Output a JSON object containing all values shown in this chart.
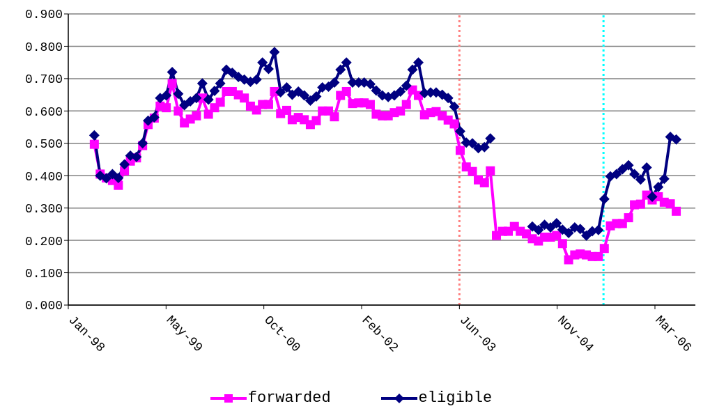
{
  "chart_data": {
    "type": "line",
    "x": [
      "1998-06",
      "1998-07",
      "1998-08",
      "1998-09",
      "1998-10",
      "1998-11",
      "1998-12",
      "1999-01",
      "1999-02",
      "1999-03",
      "1999-04",
      "1999-05",
      "1999-06",
      "1999-07",
      "1999-08",
      "1999-09",
      "1999-10",
      "1999-11",
      "1999-12",
      "2000-01",
      "2000-02",
      "2000-03",
      "2000-04",
      "2000-05",
      "2000-06",
      "2000-07",
      "2000-08",
      "2000-09",
      "2000-10",
      "2000-11",
      "2000-12",
      "2001-01",
      "2001-02",
      "2001-03",
      "2001-04",
      "2001-05",
      "2001-06",
      "2001-07",
      "2001-08",
      "2001-09",
      "2001-10",
      "2001-11",
      "2001-12",
      "2002-01",
      "2002-02",
      "2002-03",
      "2002-04",
      "2002-05",
      "2002-06",
      "2002-07",
      "2002-08",
      "2002-09",
      "2002-10",
      "2002-11",
      "2002-12",
      "2003-01",
      "2003-02",
      "2003-03",
      "2003-04",
      "2003-05",
      "2003-06",
      "2003-07",
      "2003-08",
      "2003-09",
      "2003-10",
      "2003-11",
      "2003-12",
      "2004-01",
      "2004-02",
      "2004-03",
      "2004-04",
      "2004-05",
      "2004-06",
      "2004-07",
      "2004-08",
      "2004-09",
      "2004-10",
      "2004-11",
      "2004-12",
      "2005-01",
      "2005-02",
      "2005-03",
      "2005-04",
      "2005-05",
      "2005-06",
      "2005-07",
      "2005-08",
      "2005-09",
      "2005-10",
      "2005-11",
      "2005-12",
      "2006-01",
      "2006-02",
      "2006-03",
      "2006-04",
      "2006-05",
      "2006-06",
      "2006-07"
    ],
    "series": [
      {
        "name": "forwarded",
        "color": "#ff00ff",
        "marker": "square",
        "values": [
          0.497,
          0.405,
          0.393,
          0.385,
          0.37,
          0.415,
          0.445,
          0.455,
          0.493,
          0.558,
          0.578,
          0.615,
          0.61,
          0.685,
          0.6,
          0.563,
          0.575,
          0.585,
          0.64,
          0.59,
          0.61,
          0.627,
          0.66,
          0.66,
          0.65,
          0.64,
          0.615,
          0.603,
          0.62,
          0.62,
          0.66,
          0.592,
          0.602,
          0.573,
          0.58,
          0.573,
          0.558,
          0.57,
          0.6,
          0.6,
          0.582,
          0.648,
          0.66,
          0.623,
          0.625,
          0.625,
          0.62,
          0.59,
          0.585,
          0.585,
          0.595,
          0.6,
          0.62,
          0.665,
          0.648,
          0.588,
          0.595,
          0.598,
          0.585,
          0.572,
          0.56,
          0.478,
          0.427,
          0.413,
          0.387,
          0.378,
          0.415,
          0.215,
          0.228,
          0.228,
          0.243,
          0.228,
          0.22,
          0.205,
          0.198,
          0.21,
          0.21,
          0.215,
          0.19,
          0.14,
          0.155,
          0.158,
          0.155,
          0.15,
          0.15,
          0.175,
          0.245,
          0.252,
          0.252,
          0.27,
          0.31,
          0.312,
          0.34,
          0.325,
          0.335,
          0.318,
          0.313,
          0.29
        ]
      },
      {
        "name": "eligible",
        "color": "#000080",
        "marker": "diamond",
        "values": [
          0.525,
          0.4,
          0.392,
          0.405,
          0.393,
          0.435,
          0.462,
          0.458,
          0.5,
          0.57,
          0.58,
          0.64,
          0.648,
          0.72,
          0.653,
          0.618,
          0.63,
          0.64,
          0.685,
          0.635,
          0.662,
          0.685,
          0.728,
          0.718,
          0.705,
          0.697,
          0.69,
          0.697,
          0.75,
          0.73,
          0.782,
          0.658,
          0.673,
          0.65,
          0.66,
          0.648,
          0.632,
          0.645,
          0.673,
          0.675,
          0.688,
          0.728,
          0.75,
          0.688,
          0.688,
          0.688,
          0.683,
          0.663,
          0.648,
          0.643,
          0.648,
          0.66,
          0.678,
          0.728,
          0.75,
          0.655,
          0.657,
          0.657,
          0.65,
          0.64,
          0.613,
          0.537,
          0.502,
          0.5,
          0.485,
          0.488,
          0.515,
          null,
          null,
          null,
          null,
          null,
          null,
          0.243,
          0.232,
          0.248,
          0.24,
          0.253,
          0.233,
          0.223,
          0.24,
          0.235,
          0.215,
          0.228,
          0.232,
          0.328,
          0.398,
          0.405,
          0.42,
          0.432,
          0.405,
          0.388,
          0.425,
          0.335,
          0.365,
          0.39,
          0.52,
          0.512
        ]
      }
    ],
    "xlim": [
      "1998-01-20",
      "2006-10-06"
    ],
    "xticks": [
      {
        "value": "1998-01-20",
        "label": "Jan-98"
      },
      {
        "value": "1999-05-31",
        "label": "May-99"
      },
      {
        "value": "2000-10-08",
        "label": "Oct-00"
      },
      {
        "value": "2002-02-16",
        "label": "Feb-02"
      },
      {
        "value": "2003-06-27",
        "label": "Jun-03"
      },
      {
        "value": "2004-11-04",
        "label": "Nov-04"
      },
      {
        "value": "2006-03-15",
        "label": "Mar-06"
      }
    ],
    "ylim": [
      0,
      0.9
    ],
    "yticks": [
      {
        "value": 0,
        "label": "0.000"
      },
      {
        "value": 0.1,
        "label": "0.100"
      },
      {
        "value": 0.2,
        "label": "0.200"
      },
      {
        "value": 0.3,
        "label": "0.300"
      },
      {
        "value": 0.4,
        "label": "0.400"
      },
      {
        "value": 0.5,
        "label": "0.500"
      },
      {
        "value": 0.6,
        "label": "0.600"
      },
      {
        "value": 0.7,
        "label": "0.700"
      },
      {
        "value": 0.8,
        "label": "0.800"
      },
      {
        "value": 0.9,
        "label": "0.900"
      }
    ],
    "ref_lines": [
      {
        "axis": "x",
        "value": "2003-06-27",
        "color": "#ff8080",
        "line_style": "dotted"
      },
      {
        "axis": "x",
        "value": "2005-06-27",
        "color": "#00ffff",
        "line_style": "dotted"
      }
    ],
    "grid": "y",
    "legend": "bottom"
  }
}
